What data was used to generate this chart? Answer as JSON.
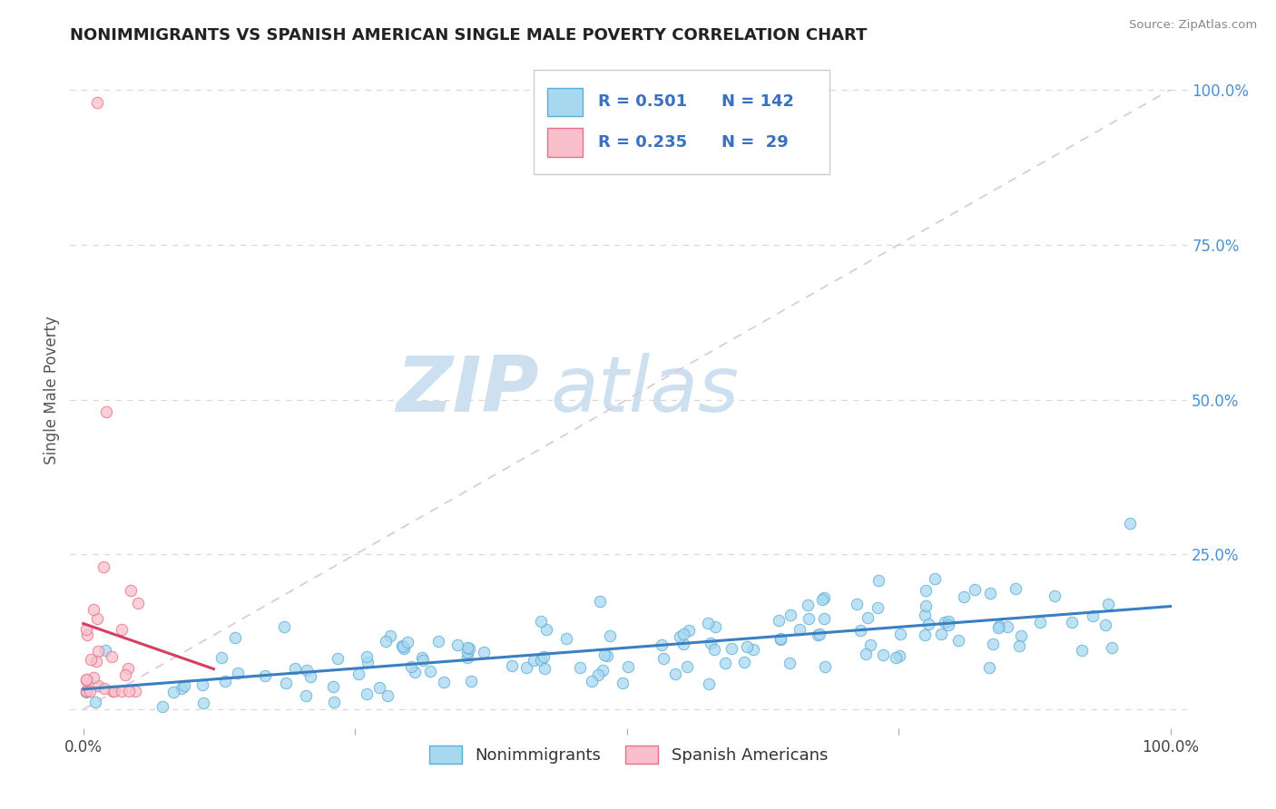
{
  "title": "NONIMMIGRANTS VS SPANISH AMERICAN SINGLE MALE POVERTY CORRELATION CHART",
  "source": "Source: ZipAtlas.com",
  "ylabel": "Single Male Poverty",
  "background_color": "#ffffff",
  "watermark_zip": "ZIP",
  "watermark_atlas": "atlas",
  "legend_r1": "R = 0.501",
  "legend_n1": "N = 142",
  "legend_r2": "R = 0.235",
  "legend_n2": "N =  29",
  "label1": "Nonimmigrants",
  "label2": "Spanish Americans",
  "color1": "#a8d8f0",
  "color2": "#f9c0cb",
  "edge_color1": "#5bafd6",
  "edge_color2": "#e8708a",
  "trend_color1": "#3a7fc1",
  "trend_color2": "#d44060",
  "diag_color": "#d8c8d8",
  "grid_color": "#d8d8d8",
  "right_tick_color": "#4a90d4",
  "blue_text": "#3a70c0",
  "title_color": "#222222",
  "source_color": "#888888",
  "ylabel_color": "#555555"
}
